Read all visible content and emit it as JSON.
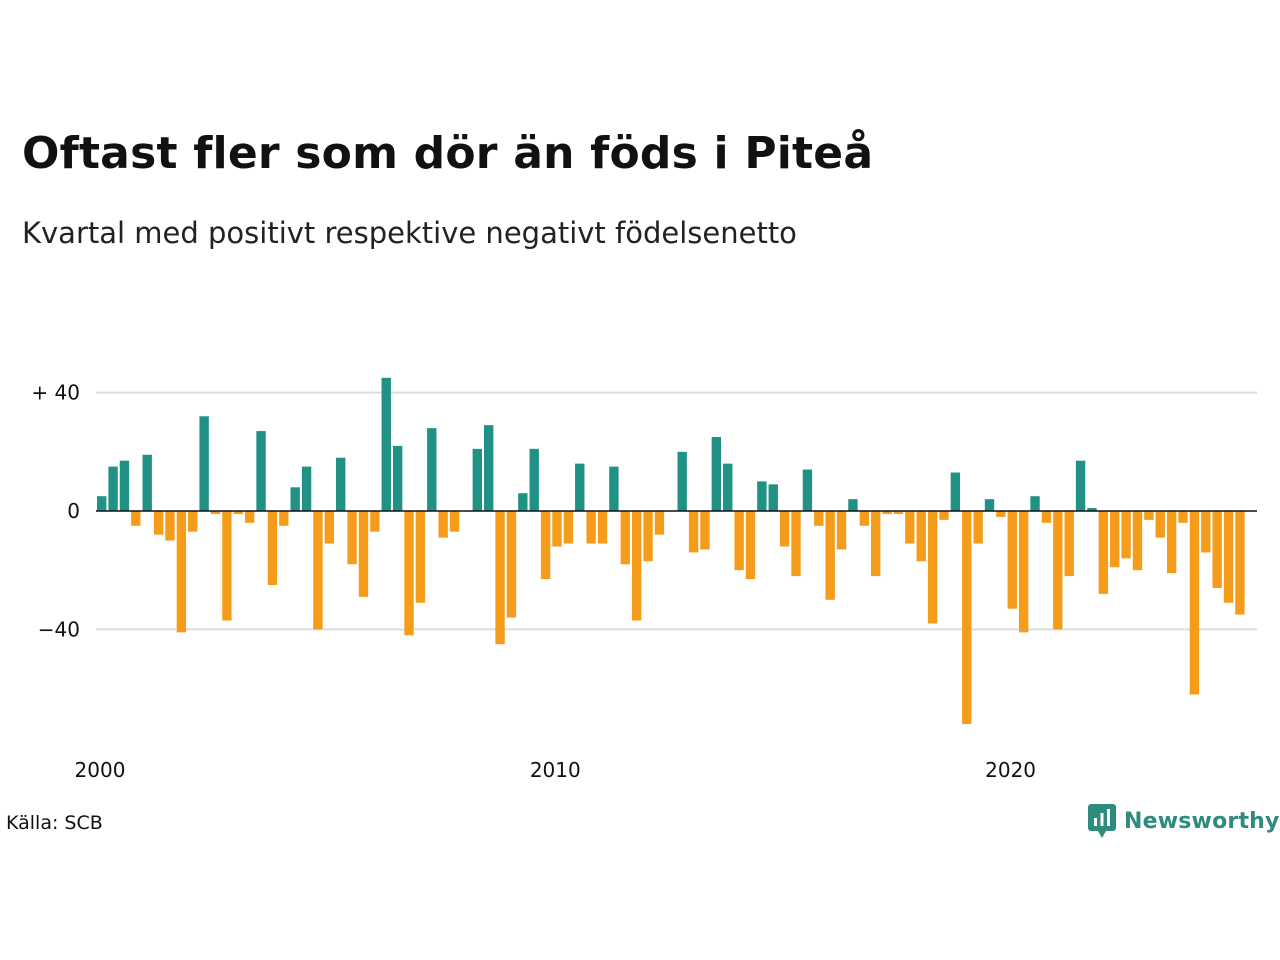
{
  "brand": {
    "name": "Newsworthy",
    "color": "#2e8b7d"
  },
  "source": "Källa: SCB",
  "chart_data": {
    "type": "bar",
    "title": "Oftast fler som dör än föds i Piteå",
    "subtitle": "Kvartal med positivt respektive negativt födelsenetto",
    "xlabel": "",
    "ylabel": "",
    "ylim": [
      -75,
      45
    ],
    "x_range": [
      2000,
      2025.5
    ],
    "y_ticks": [
      {
        "value": 40,
        "label": "+ 40"
      },
      {
        "value": 0,
        "label": "0"
      },
      {
        "value": -40,
        "label": "−40"
      }
    ],
    "x_ticks": [
      {
        "value": 2000,
        "label": "2000"
      },
      {
        "value": 2010,
        "label": "2010"
      },
      {
        "value": 2020,
        "label": "2020"
      }
    ],
    "grid": true,
    "legend": "none",
    "colors": {
      "positive": "#1f9185",
      "negative": "#f59d1b"
    },
    "x_start": "2000 Q1",
    "quarters_per_year": 4,
    "values": [
      5,
      15,
      17,
      -5,
      19,
      -8,
      -10,
      -41,
      -7,
      32,
      -1,
      -37,
      -1,
      -4,
      27,
      -25,
      -5,
      8,
      15,
      -40,
      -11,
      18,
      -18,
      -29,
      -7,
      45,
      22,
      -42,
      -31,
      28,
      -9,
      -7,
      0,
      21,
      29,
      -45,
      -36,
      6,
      21,
      -23,
      -12,
      -11,
      16,
      -11,
      -11,
      15,
      -18,
      -37,
      -17,
      -8,
      0,
      20,
      -14,
      -13,
      25,
      16,
      -20,
      -23,
      10,
      9,
      -12,
      -22,
      14,
      -5,
      -30,
      -13,
      4,
      -5,
      -22,
      -1,
      -1,
      -11,
      -17,
      -38,
      -3,
      13,
      -72,
      -11,
      4,
      -2,
      -33,
      -41,
      5,
      -4,
      -40,
      -22,
      17,
      1,
      -28,
      -19,
      -16,
      -20,
      -3,
      -9,
      -21,
      -4,
      -62,
      -14,
      -26,
      -31,
      -35
    ]
  }
}
